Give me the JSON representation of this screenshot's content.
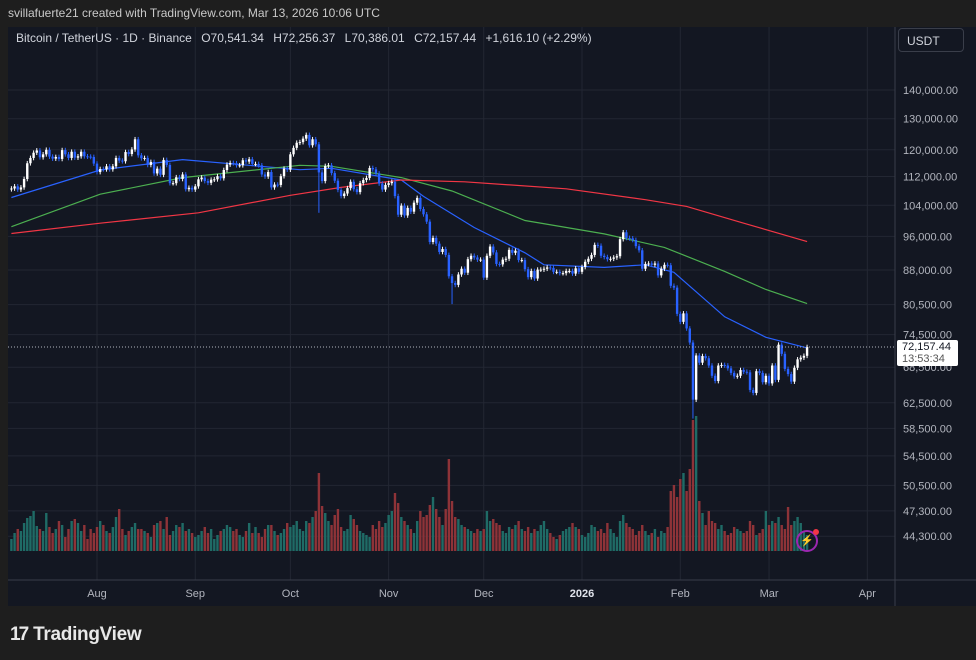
{
  "header": {
    "credit": "svillafuerte21 created with TradingView.com, Mar 13, 2026 10:06 UTC"
  },
  "legend": {
    "symbol": "Bitcoin / TetherUS · 1D · Binance",
    "open": "O70,541.34",
    "high": "H72,256.37",
    "low": "L70,386.01",
    "close": "C72,157.44",
    "change": "+1,616.10 (+2.29%)"
  },
  "currency_button": "USDT",
  "last_price": {
    "price": "72,157.44",
    "countdown": "13:53:34",
    "value": 72157.44
  },
  "logo": {
    "mark": "TV",
    "text": "TradingView"
  },
  "icons": {
    "alert": "lightning-icon"
  },
  "colors": {
    "up": "#ffffff",
    "down": "#2962ff",
    "vol_up": "#1f6b66",
    "vol_down": "#8e3338",
    "ma_blue": "#2962ff",
    "ma_green": "#4caf50",
    "ma_red": "#f23645",
    "background": "#131722"
  },
  "chart_data": {
    "type": "candlestick",
    "interval": "1D",
    "yscale": "log",
    "first_date": "2025-07-05",
    "closes": [
      108600,
      109200,
      108300,
      108900,
      111300,
      115900,
      117500,
      119100,
      119800,
      117700,
      118600,
      120000,
      117900,
      117300,
      117800,
      117200,
      119900,
      118600,
      117500,
      119400,
      117600,
      118000,
      119400,
      118000,
      117900,
      117800,
      115800,
      113300,
      114200,
      114100,
      115000,
      114100,
      115000,
      117500,
      116700,
      116500,
      119300,
      118700,
      120100,
      123300,
      118300,
      117400,
      117500,
      115400,
      116300,
      112900,
      114300,
      112500,
      116900,
      115400,
      110100,
      110100,
      111800,
      111300,
      112600,
      108400,
      108800,
      108300,
      109200,
      111200,
      111700,
      110700,
      110200,
      111100,
      111200,
      112100,
      111500,
      113900,
      115500,
      116000,
      115900,
      115300,
      115300,
      116800,
      116400,
      117100,
      115700,
      115700,
      115300,
      112600,
      112000,
      113300,
      108900,
      109700,
      109600,
      112100,
      114300,
      114000,
      118600,
      120600,
      122200,
      122400,
      123500,
      124700,
      121400,
      123300,
      121700,
      113200,
      110700,
      115100,
      115300,
      113000,
      110800,
      108200,
      106500,
      107200,
      108700,
      110500,
      108400,
      107600,
      110100,
      111000,
      111600,
      114500,
      114100,
      112900,
      110000,
      108300,
      109600,
      110100,
      110500,
      106500,
      101500,
      103900,
      101300,
      103300,
      102300,
      104700,
      106000,
      103000,
      101600,
      99700,
      94600,
      95600,
      94200,
      92200,
      92900,
      91500,
      86600,
      85100,
      84700,
      87000,
      88300,
      87400,
      90500,
      91300,
      90900,
      90400,
      90400,
      86300,
      91300,
      93500,
      92100,
      89400,
      89300,
      90400,
      90600,
      92700,
      92000,
      92500,
      90300,
      90300,
      88200,
      86400,
      87800,
      86100,
      88100,
      88100,
      88300,
      88600,
      88500,
      87600,
      87600,
      87300,
      87300,
      87800,
      87800,
      87200,
      88400,
      87600,
      88700,
      89900,
      90600,
      91500,
      93900,
      93700,
      91300,
      91000,
      90500,
      90600,
      90900,
      91200,
      95300,
      97000,
      95600,
      95500,
      95100,
      93600,
      92600,
      88300,
      89400,
      89500,
      89200,
      89500,
      86800,
      88300,
      89200,
      89100,
      84500,
      84100,
      78600,
      77000,
      78700,
      75700,
      73000,
      63000,
      70600,
      69300,
      70500,
      70100,
      68800,
      67000,
      66100,
      68800,
      68900,
      68800,
      68300,
      67500,
      66900,
      67000,
      68000,
      67700,
      67600,
      64600,
      64100,
      67800,
      67500,
      65900,
      67000,
      65700,
      68800,
      66300,
      72600,
      70900,
      68200,
      67300,
      66000,
      68400,
      69900,
      70200,
      70541,
      72157
    ],
    "extreme_lows": {
      "2025-10-10": 102000,
      "2025-11-21": 80600,
      "2026-02-05": 60000
    },
    "volume_relative": [
      12,
      18,
      22,
      20,
      28,
      33,
      35,
      40,
      25,
      22,
      20,
      38,
      24,
      18,
      22,
      30,
      26,
      14,
      22,
      30,
      32,
      28,
      20,
      26,
      12,
      22,
      18,
      24,
      30,
      26,
      20,
      18,
      24,
      34,
      42,
      22,
      16,
      20,
      24,
      28,
      22,
      22,
      20,
      18,
      14,
      26,
      28,
      30,
      22,
      34,
      16,
      20,
      26,
      24,
      28,
      20,
      22,
      18,
      14,
      16,
      20,
      24,
      18,
      22,
      12,
      16,
      20,
      22,
      26,
      24,
      20,
      22,
      16,
      14,
      20,
      28,
      18,
      24,
      18,
      14,
      22,
      26,
      26,
      20,
      16,
      18,
      22,
      28,
      24,
      26,
      30,
      22,
      20,
      30,
      28,
      34,
      40,
      78,
      45,
      38,
      30,
      26,
      36,
      42,
      24,
      20,
      22,
      36,
      32,
      26,
      20,
      18,
      16,
      14,
      26,
      22,
      30,
      24,
      28,
      36,
      40,
      58,
      48,
      34,
      30,
      26,
      22,
      18,
      30,
      40,
      34,
      36,
      46,
      54,
      42,
      34,
      26,
      42,
      92,
      50,
      34,
      32,
      26,
      24,
      22,
      20,
      18,
      22,
      20,
      22,
      40,
      30,
      32,
      28,
      26,
      20,
      18,
      24,
      22,
      26,
      30,
      22,
      20,
      24,
      18,
      22,
      20,
      26,
      30,
      22,
      18,
      14,
      12,
      16,
      20,
      22,
      24,
      28,
      24,
      22,
      16,
      14,
      18,
      26,
      24,
      20,
      22,
      18,
      28,
      22,
      18,
      14,
      30,
      36,
      28,
      24,
      22,
      16,
      20,
      26,
      20,
      16,
      18,
      22,
      14,
      20,
      18,
      24,
      60,
      66,
      54,
      72,
      78,
      60,
      82,
      131,
      135,
      50,
      38,
      26,
      40,
      30,
      28,
      22,
      26,
      20,
      16,
      18,
      24,
      22,
      20,
      18,
      20,
      30,
      26,
      16,
      18,
      22,
      40,
      26,
      30,
      28,
      34,
      26,
      22,
      44,
      26,
      30,
      34,
      28,
      20,
      16
    ],
    "moving_averages": [
      {
        "color": "#2962ff",
        "points": [
          [
            "2025-07-05",
            106100
          ],
          [
            "2025-08-02",
            113900
          ],
          [
            "2025-08-28",
            117000
          ],
          [
            "2025-10-04",
            114000
          ],
          [
            "2025-10-14",
            114400
          ],
          [
            "2025-11-05",
            111000
          ],
          [
            "2025-11-12",
            106400
          ],
          [
            "2025-11-28",
            98200
          ],
          [
            "2025-12-14",
            92000
          ],
          [
            "2025-12-20",
            89200
          ],
          [
            "2026-01-08",
            88600
          ],
          [
            "2026-01-21",
            89200
          ],
          [
            "2026-01-30",
            87500
          ],
          [
            "2026-02-15",
            78000
          ],
          [
            "2026-02-28",
            74000
          ],
          [
            "2026-03-13",
            72000
          ]
        ]
      },
      {
        "color": "#4caf50",
        "points": [
          [
            "2025-07-05",
            98400
          ],
          [
            "2025-08-02",
            107000
          ],
          [
            "2025-08-28",
            111700
          ],
          [
            "2025-10-04",
            115300
          ],
          [
            "2025-10-14",
            115000
          ],
          [
            "2025-11-05",
            111700
          ],
          [
            "2025-11-21",
            107900
          ],
          [
            "2025-12-14",
            100000
          ],
          [
            "2026-01-08",
            96600
          ],
          [
            "2026-01-27",
            93300
          ],
          [
            "2026-02-15",
            87700
          ],
          [
            "2026-02-28",
            83700
          ],
          [
            "2026-03-13",
            80700
          ]
        ]
      },
      {
        "color": "#f23645",
        "points": [
          [
            "2025-07-05",
            96700
          ],
          [
            "2025-08-02",
            99300
          ],
          [
            "2025-09-02",
            102000
          ],
          [
            "2025-10-01",
            106700
          ],
          [
            "2025-10-17",
            108900
          ],
          [
            "2025-11-05",
            111000
          ],
          [
            "2025-11-25",
            110500
          ],
          [
            "2025-12-27",
            108500
          ],
          [
            "2026-01-21",
            105500
          ],
          [
            "2026-02-03",
            103700
          ],
          [
            "2026-02-21",
            99300
          ],
          [
            "2026-03-13",
            94700
          ]
        ]
      }
    ],
    "y_ticks": [
      "140,000.00",
      "130,000.00",
      "120,000.00",
      "112,000.00",
      "104,000.00",
      "96,000.00",
      "88,000.00",
      "80,500.00",
      "74,500.00",
      "68,500.00",
      "62,500.00",
      "58,500.00",
      "54,500.00",
      "50,500.00",
      "47,300.00",
      "44,300.00"
    ],
    "x_ticks": [
      {
        "label": "Aug",
        "date": "2025-08-01"
      },
      {
        "label": "Sep",
        "date": "2025-09-01"
      },
      {
        "label": "Oct",
        "date": "2025-10-01"
      },
      {
        "label": "Nov",
        "date": "2025-11-01"
      },
      {
        "label": "Dec",
        "date": "2025-12-01"
      },
      {
        "label": "2026",
        "date": "2026-01-01"
      },
      {
        "label": "Feb",
        "date": "2026-02-01"
      },
      {
        "label": "Mar",
        "date": "2026-03-01"
      },
      {
        "label": "Apr",
        "date": "2026-04-01"
      }
    ]
  }
}
